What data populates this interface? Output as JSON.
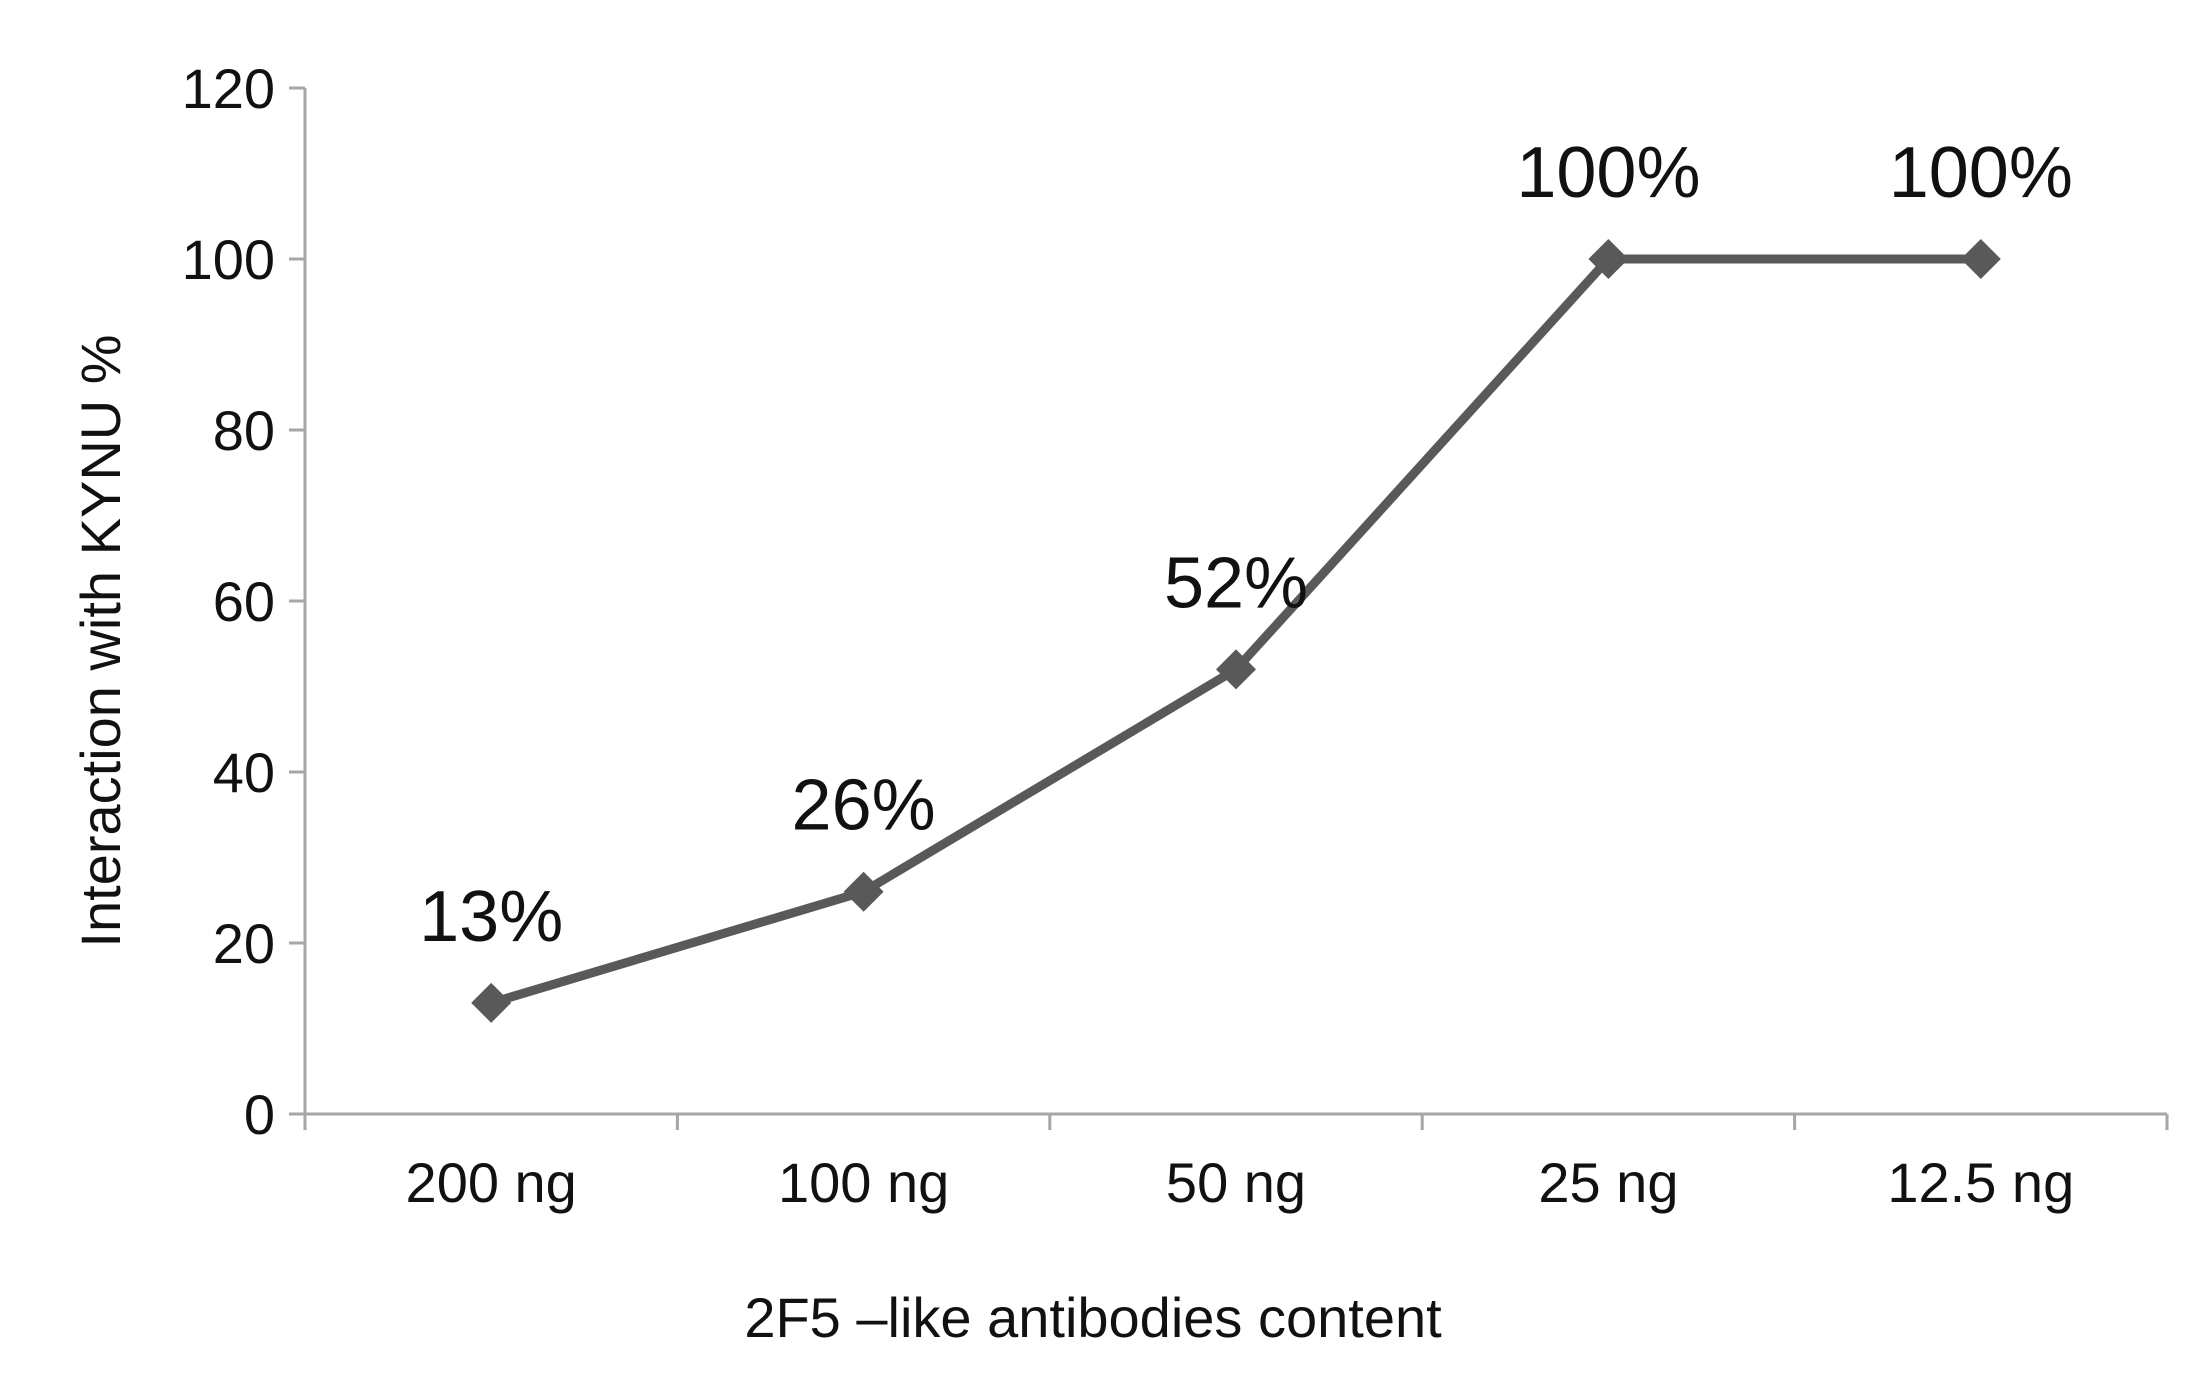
{
  "chart_data": {
    "type": "line",
    "title": "",
    "xlabel": "2F5 –like antibodies content",
    "ylabel": "Interaction with KYNU %",
    "categories": [
      "200 ng",
      "100 ng",
      "50 ng",
      "25 ng",
      "12.5 ng"
    ],
    "series": [
      {
        "name": "Interaction with KYNU",
        "values": [
          13,
          26,
          52,
          100,
          100
        ],
        "data_labels": [
          "13%",
          "26%",
          "52%",
          "100%",
          "100%"
        ],
        "marker": "diamond"
      }
    ],
    "yticks": [
      "0",
      "20",
      "40",
      "60",
      "80",
      "100",
      "120"
    ],
    "ylim": [
      0,
      120
    ],
    "grid": false,
    "legend": "none",
    "colors": {
      "line": "#595959",
      "axis": "#a6a6a6",
      "text": "#111111"
    }
  }
}
